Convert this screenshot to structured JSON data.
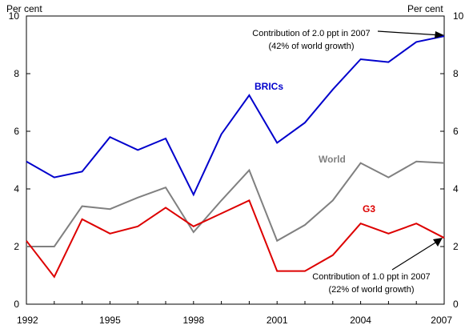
{
  "chart_data": {
    "type": "line",
    "x": [
      1992,
      1993,
      1994,
      1995,
      1996,
      1997,
      1998,
      1999,
      2000,
      2001,
      2002,
      2003,
      2004,
      2005,
      2006,
      2007
    ],
    "x_tick_labels": [
      "1992",
      "1995",
      "1998",
      "2001",
      "2004",
      "2007"
    ],
    "y_tick_labels": [
      "0",
      "2",
      "4",
      "6",
      "8",
      "10"
    ],
    "ylim": [
      0,
      10
    ],
    "xlim": [
      1992,
      2007
    ],
    "y_unit_left": "Per cent",
    "y_unit_right": "Per cent",
    "grid": false,
    "series": [
      {
        "name": "BRICs",
        "color": "#0000cc",
        "values": [
          4.95,
          4.4,
          4.6,
          5.8,
          5.35,
          5.75,
          3.8,
          5.9,
          7.25,
          5.6,
          6.3,
          7.45,
          8.5,
          8.4,
          9.1,
          9.3
        ]
      },
      {
        "name": "World",
        "color": "#808080",
        "values": [
          2.0,
          2.0,
          3.4,
          3.3,
          3.7,
          4.05,
          2.5,
          3.6,
          4.65,
          2.2,
          2.75,
          3.6,
          4.9,
          4.4,
          4.95,
          4.9
        ]
      },
      {
        "name": "G3",
        "color": "#dd0000",
        "values": [
          2.2,
          0.95,
          2.95,
          2.45,
          2.7,
          3.35,
          2.7,
          3.15,
          3.6,
          1.15,
          1.15,
          1.7,
          2.8,
          2.45,
          2.8,
          2.3
        ]
      }
    ],
    "annotations": [
      {
        "line1": "Contribution of 2.0 ppt in 2007",
        "line2": "(42% of world growth)",
        "target_x": 2007,
        "target_y": 9.3
      },
      {
        "line1": "Contribution of 1.0 ppt in 2007",
        "line2": "(22% of world growth)",
        "target_x": 2007,
        "target_y": 2.3
      }
    ]
  }
}
